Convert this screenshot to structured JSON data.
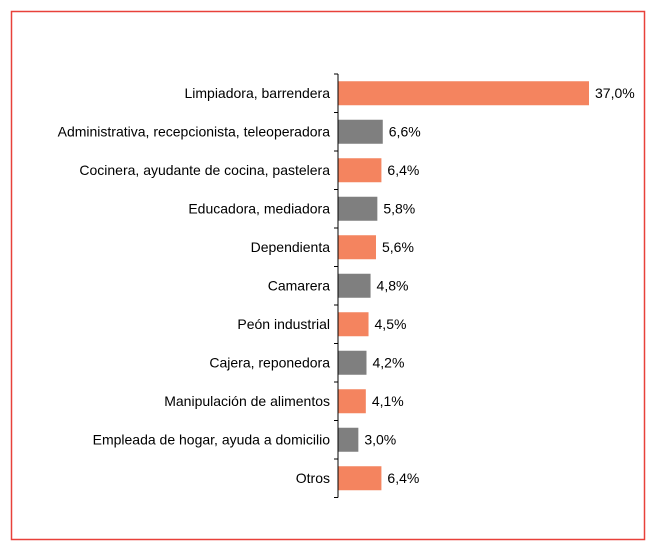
{
  "chart_data": {
    "type": "barh",
    "categories": [
      "Limpiadora, barrendera",
      "Administrativa, recepcionista, teleoperadora",
      "Cocinera, ayudante de cocina, pastelera",
      "Educadora, mediadora",
      "Dependienta",
      "Camarera",
      "Peón industrial",
      "Cajera, reponedora",
      "Manipulación de alimentos",
      "Empleada de hogar, ayuda a domicilio",
      "Otros"
    ],
    "values": [
      37.0,
      6.6,
      6.4,
      5.8,
      5.6,
      4.8,
      4.5,
      4.2,
      4.1,
      3.0,
      6.4
    ],
    "value_labels": [
      "37,0%",
      "6,6%",
      "6,4%",
      "5,8%",
      "5,6%",
      "4,8%",
      "4,5%",
      "4,2%",
      "4,1%",
      "3,0%",
      "6,4%"
    ],
    "colors": [
      "#f4845f",
      "#7f7f7f",
      "#f4845f",
      "#7f7f7f",
      "#f4845f",
      "#7f7f7f",
      "#f4845f",
      "#7f7f7f",
      "#f4845f",
      "#7f7f7f",
      "#f4845f"
    ]
  }
}
